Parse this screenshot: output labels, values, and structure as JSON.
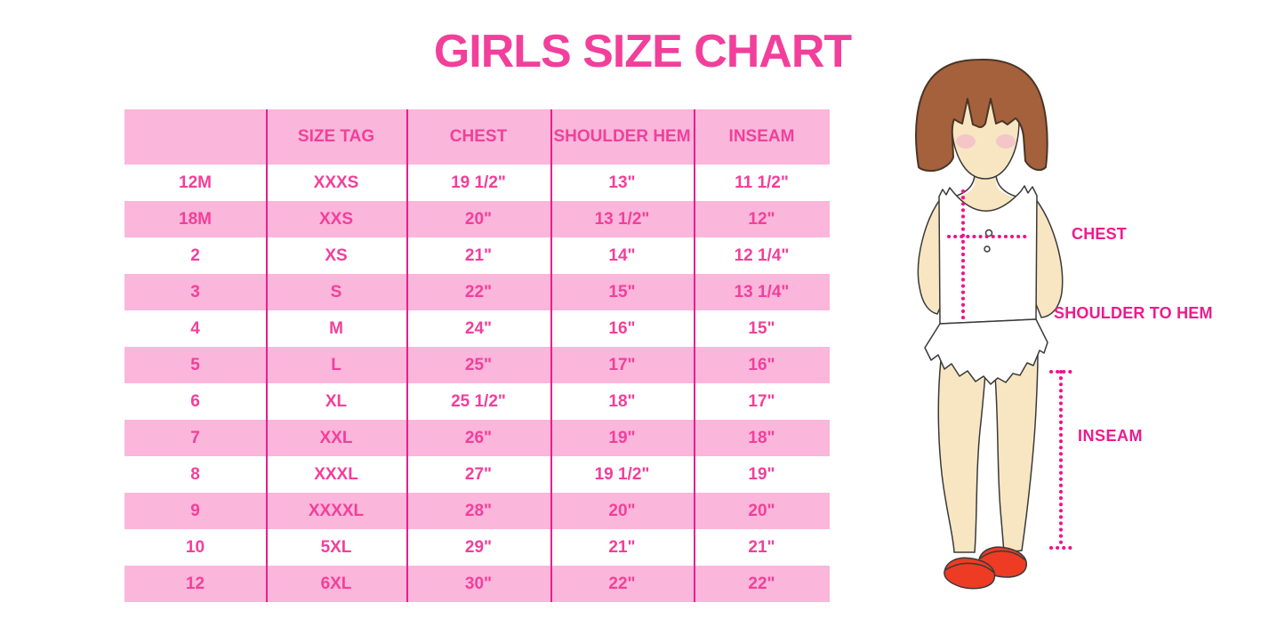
{
  "chart_data": {
    "type": "table",
    "title": "GIRLS SIZE CHART",
    "columns": [
      "",
      "SIZE TAG",
      "CHEST",
      "SHOULDER HEM",
      "INSEAM"
    ],
    "rows": [
      [
        "12M",
        "XXXS",
        "19 1/2\"",
        "13\"",
        "11 1/2\""
      ],
      [
        "18M",
        "XXS",
        "20\"",
        "13 1/2\"",
        "12\""
      ],
      [
        "2",
        "XS",
        "21\"",
        "14\"",
        "12 1/4\""
      ],
      [
        "3",
        "S",
        "22\"",
        "15\"",
        "13 1/4\""
      ],
      [
        "4",
        "M",
        "24\"",
        "16\"",
        "15\""
      ],
      [
        "5",
        "L",
        "25\"",
        "17\"",
        "16\""
      ],
      [
        "6",
        "XL",
        "25 1/2\"",
        "18\"",
        "17\""
      ],
      [
        "7",
        "XXL",
        "26\"",
        "19\"",
        "18\""
      ],
      [
        "8",
        "XXXL",
        "27\"",
        "19 1/2\"",
        "19\""
      ],
      [
        "9",
        "XXXXL",
        "28\"",
        "20\"",
        "20\""
      ],
      [
        "10",
        "5XL",
        "29\"",
        "21\"",
        "21\""
      ],
      [
        "12",
        "6XL",
        "30\"",
        "22\"",
        "22\""
      ]
    ],
    "layout_hints": {
      "striped_rows": true,
      "first_data_row_background": "white",
      "column_dividers": "magenta vertical lines, no horizontal borders"
    }
  },
  "measurement_diagram": {
    "chest_label": "CHEST",
    "shoulder_to_hem_label": "SHOULDER TO HEM",
    "inseam_label": "INSEAM",
    "figure": "toddler girl, brown bob hair, white ruffled dress, red mary-jane shoes, magenta dotted measurement guides"
  },
  "colors": {
    "title_pink": "#F23F9B",
    "text_pink": "#F23F9B",
    "row_pink": "#FBB6DB",
    "divider_magenta": "#E81F8E",
    "label_magenta": "#EE1A8D",
    "dotted_magenta": "#F2108E",
    "hair_brown": "#A5613C",
    "hair_outline": "#4A3526",
    "skin": "#F8E6C3",
    "blush": "#F3BFC9",
    "outline": "#3A3A3A",
    "shoe_red": "#EE3B24"
  }
}
